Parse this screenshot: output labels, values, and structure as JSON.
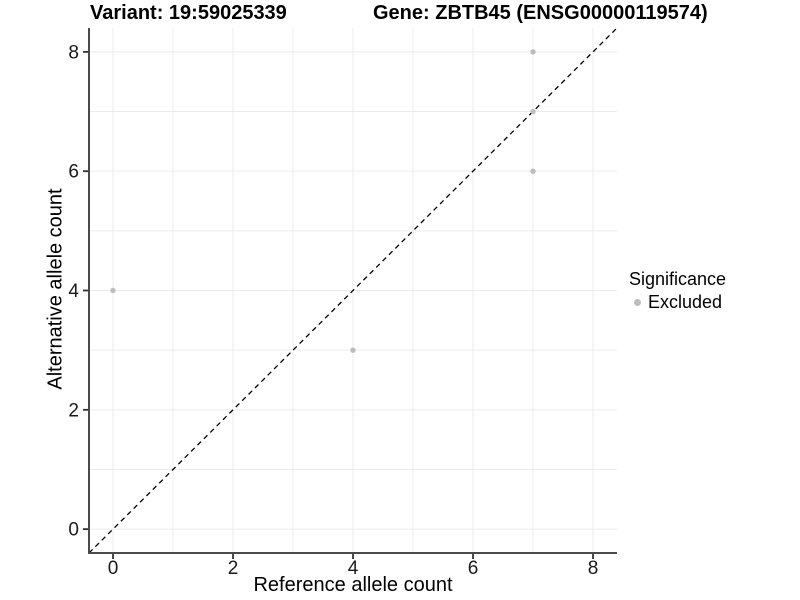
{
  "chart_data": {
    "type": "scatter",
    "titles": {
      "left": "Variant: 19:59025339",
      "right": "Gene: ZBTB45 (ENSG00000119574)"
    },
    "xlabel": "Reference allele count",
    "ylabel": "Alternative allele count",
    "xlim": [
      -0.4,
      8.4
    ],
    "ylim": [
      -0.4,
      8.4
    ],
    "x_ticks": [
      0,
      2,
      4,
      6,
      8
    ],
    "y_ticks": [
      0,
      2,
      4,
      6,
      8
    ],
    "grid_lines_x": [
      0,
      1,
      2,
      3,
      4,
      5,
      6,
      7,
      8
    ],
    "grid_lines_y": [
      0,
      1,
      2,
      3,
      4,
      5,
      6,
      7,
      8
    ],
    "grid": "on",
    "series": [
      {
        "name": "Excluded",
        "color": "#bdbdbd",
        "points": [
          [
            0,
            4
          ],
          [
            4,
            3
          ],
          [
            7,
            6
          ],
          [
            7,
            7
          ],
          [
            7,
            8
          ]
        ]
      }
    ],
    "reference_line": {
      "type": "identity",
      "slope": 1,
      "intercept": 0,
      "style": "dashed",
      "color": "#000000"
    },
    "legend": {
      "title": "Significance",
      "position": "right",
      "items": [
        {
          "label": "Excluded",
          "color": "#bdbdbd",
          "marker": "circle"
        }
      ]
    }
  },
  "colors": {
    "background": "#ffffff",
    "grid": "#ececec",
    "axis": "#4a4a4a",
    "tick": "#333333",
    "tick_label": "#1a1a1a",
    "point": "#bdbdbd",
    "text": "#000000"
  }
}
